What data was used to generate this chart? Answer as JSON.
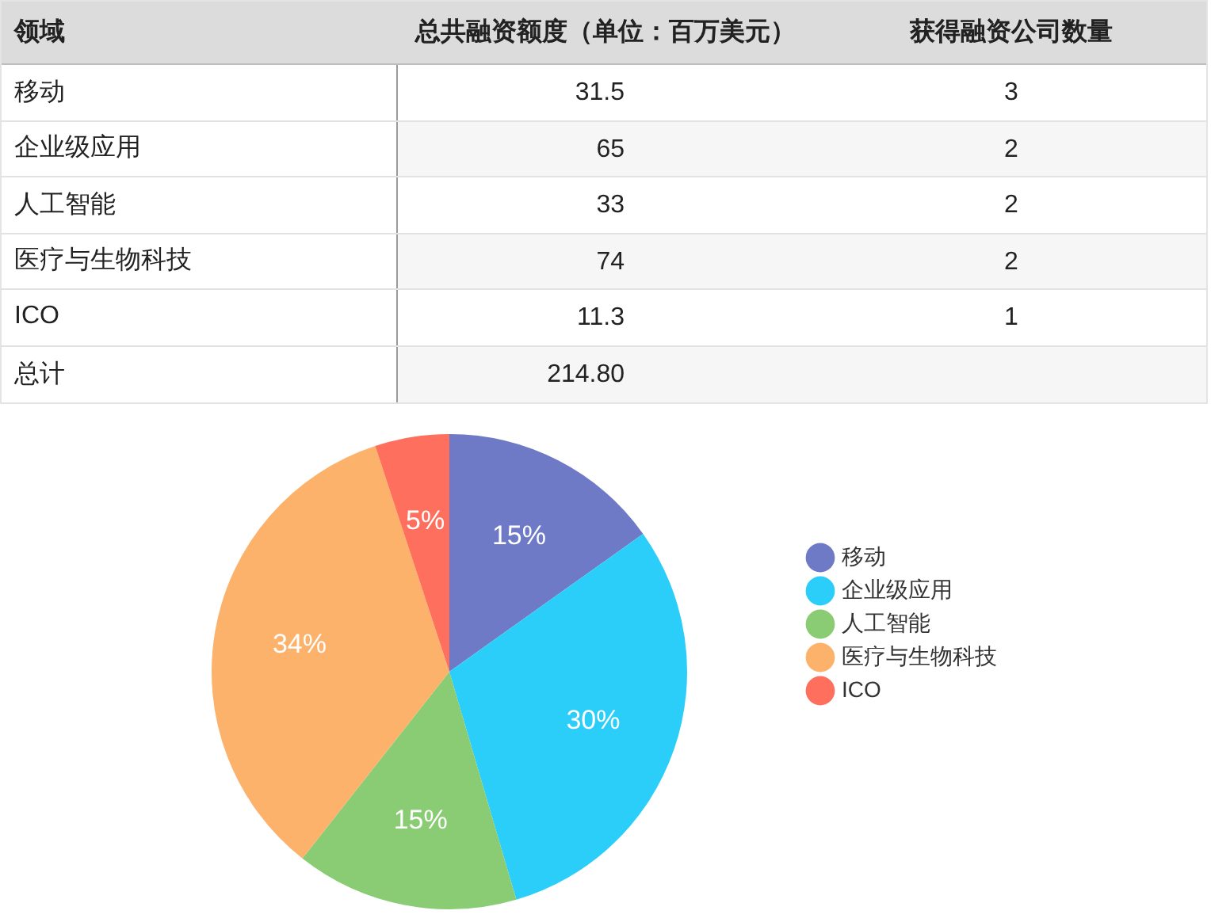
{
  "chart_data": [
    {
      "type": "other",
      "xlabel": "领域",
      "categories": [
        "移动",
        "企业级应用",
        "人工智能",
        "医疗与生物科技",
        "ICO"
      ],
      "series": [
        {
          "name": "总共融资额度（单位：百万美元）",
          "values": [
            31.5,
            65,
            33,
            74,
            11.3
          ]
        },
        {
          "name": "获得融资公司数量",
          "values": [
            3,
            2,
            2,
            2,
            1
          ]
        }
      ],
      "data_labels": true,
      "annotations": [
        "总计"
      ],
      "totals": [
        "214.80",
        null
      ]
    },
    {
      "type": "pie",
      "categories": [
        "移动",
        "企业级应用",
        "人工智能",
        "医疗与生物科技",
        "ICO"
      ],
      "values": [
        15,
        30,
        15,
        34,
        5
      ],
      "colors": [
        "#6f7ac6",
        "#2bcdf9",
        "#89cc73",
        "#fdb26c",
        "#fe6f5e"
      ],
      "value_labels": [
        "15%",
        "30%",
        "15%",
        "34%",
        "5%"
      ],
      "legend": "right"
    }
  ]
}
